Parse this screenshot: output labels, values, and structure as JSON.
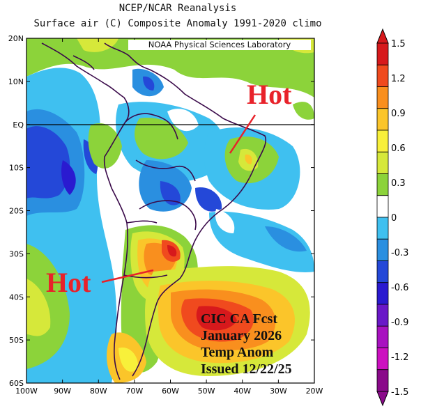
{
  "title": {
    "line1": "NCEP/NCAR Reanalysis",
    "line2": "Surface air (C) Composite Anomaly 1991-2020 climo"
  },
  "credit": "NOAA Physical Sciences Laboratory",
  "annotations": {
    "hot_northeast": "Hot",
    "hot_south": "Hot"
  },
  "forecast_box": {
    "line1": "CIC CA Fcst",
    "line2": "January 2026",
    "line3": "Temp Anom",
    "line4": "Issued 12/22/25"
  },
  "axes": {
    "lat_labels": [
      "20N",
      "10N",
      "EQ",
      "10S",
      "20S",
      "30S",
      "40S",
      "50S",
      "60S"
    ],
    "lon_labels": [
      "100W",
      "90W",
      "80W",
      "70W",
      "60W",
      "50W",
      "40W",
      "30W",
      "20W"
    ]
  },
  "colorbar": {
    "labels": [
      "1.5",
      "1.2",
      "0.9",
      "0.6",
      "0.3",
      "0",
      "-0.3",
      "-0.6",
      "-0.9",
      "-1.2",
      "-1.5"
    ],
    "colors": [
      "#d7191c",
      "#f04a1e",
      "#f98f1e",
      "#fbc52a",
      "#f8f03a",
      "#d6e83a",
      "#8cd33a",
      "#ffffff",
      "#3fc0f0",
      "#2a8fe0",
      "#2448d8",
      "#2a1ad0",
      "#6a18c8",
      "#a812c0",
      "#cc10c0",
      "#8a0a8a"
    ]
  }
}
